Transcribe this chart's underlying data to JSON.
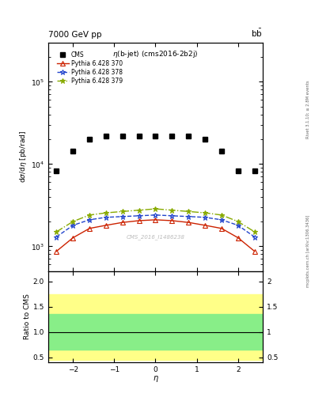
{
  "title_left": "7000 GeV pp",
  "title_right": "b$\\bar{b}$",
  "plot_title": "$\\eta$(b-jet) (cms2016-2b2j)",
  "xlabel": "$\\eta$",
  "ylabel_main": "d$\\sigma$/d$\\eta$ [pb/rad]",
  "ylabel_ratio": "Ratio to CMS",
  "right_label_top": "Rivet 3.1.10; ≥ 2.8M events",
  "right_label_bottom": "mcplots.cern.ch [arXiv:1306.3436]",
  "watermark": "CMS_2016_I1486238",
  "eta_cms": [
    -2.4,
    -2.0,
    -1.6,
    -1.2,
    -0.8,
    -0.4,
    0.0,
    0.4,
    0.8,
    1.2,
    1.6,
    2.0,
    2.4
  ],
  "cms_values": [
    8200,
    14500,
    20000,
    22000,
    22000,
    22000,
    22000,
    22000,
    22000,
    20000,
    14500,
    8200,
    8200
  ],
  "eta_pythia": [
    -2.4,
    -2.0,
    -1.6,
    -1.2,
    -0.8,
    -0.4,
    0.0,
    0.4,
    0.8,
    1.2,
    1.6,
    2.0,
    2.4
  ],
  "py370_values": [
    870,
    1270,
    1650,
    1800,
    1950,
    2050,
    2100,
    2050,
    1950,
    1800,
    1650,
    1270,
    870
  ],
  "py378_values": [
    1300,
    1800,
    2100,
    2250,
    2300,
    2350,
    2400,
    2350,
    2300,
    2250,
    2100,
    1800,
    1300
  ],
  "py379_values": [
    1500,
    2000,
    2400,
    2550,
    2650,
    2750,
    2850,
    2750,
    2650,
    2550,
    2400,
    2000,
    1500
  ],
  "ylim_main": [
    500,
    300000
  ],
  "ylim_ratio": [
    0.4,
    2.2
  ],
  "ratio_yticks": [
    0.5,
    1.0,
    1.5,
    2.0
  ],
  "xlim": [
    -2.6,
    2.6
  ],
  "green_band": [
    0.65,
    1.35
  ],
  "yellow_band": [
    0.45,
    1.75
  ],
  "cms_color": "#000000",
  "py370_color": "#cc2200",
  "py378_color": "#2244cc",
  "py379_color": "#88aa00",
  "legend_labels": [
    "CMS",
    "Pythia 6.428 370",
    "Pythia 6.428 378",
    "Pythia 6.428 379"
  ]
}
